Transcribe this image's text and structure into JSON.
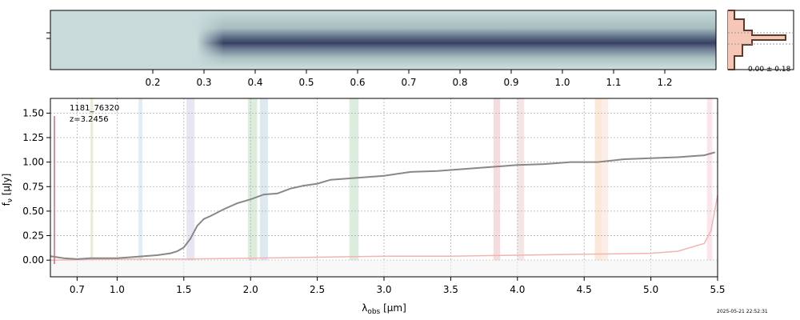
{
  "chart_data": [
    {
      "type": "heatmap",
      "description_label": "2D spectrum",
      "xaxis_ticks": [
        "0.2",
        "0.3",
        "0.4",
        "0.5",
        "0.6",
        "0.7",
        "0.8",
        "0.9",
        "1.0",
        "1.1",
        "1.2"
      ],
      "xaxis_tick_values": [
        0.2,
        0.3,
        0.4,
        0.5,
        0.6,
        0.7,
        0.8,
        0.9,
        1.0,
        1.1,
        1.2
      ],
      "xlim": [
        0.0,
        1.3
      ],
      "colormap": [
        "#c7d9d9",
        "#9fb5b8",
        "#5c6c86",
        "#3a4163"
      ]
    },
    {
      "type": "area",
      "description_label": "Spatial profile",
      "annotation": "0.00 ± 0.18",
      "fill_color": "#f6c7b7",
      "line_color": "#5b3a2e"
    },
    {
      "type": "line",
      "ylabel": "f_ν [μJy]",
      "xlabel": "λ_obs [μm]",
      "annotations": [
        "1181_76320",
        "z=3.2456"
      ],
      "xlim": [
        0.5,
        5.5
      ],
      "ylim": [
        -0.17,
        1.65
      ],
      "xticks": [
        "0.7",
        "1.0",
        "1.5",
        "2.0",
        "2.5",
        "3.0",
        "3.5",
        "4.0",
        "4.5",
        "5.0",
        "5.5"
      ],
      "xtick_values": [
        0.7,
        1.0,
        1.5,
        2.0,
        2.5,
        3.0,
        3.5,
        4.0,
        4.5,
        5.0,
        5.5
      ],
      "yticks": [
        "0.00",
        "0.25",
        "0.50",
        "0.75",
        "1.00",
        "1.25",
        "1.50"
      ],
      "ytick_values": [
        0,
        0.25,
        0.5,
        0.75,
        1.0,
        1.25,
        1.5
      ],
      "grid": true,
      "series": [
        {
          "role": "flux",
          "color": "#888888",
          "x": [
            0.5,
            0.6,
            0.7,
            0.8,
            0.9,
            1.0,
            1.1,
            1.2,
            1.3,
            1.4,
            1.45,
            1.5,
            1.55,
            1.6,
            1.65,
            1.7,
            1.8,
            1.9,
            2.0,
            2.1,
            2.2,
            2.3,
            2.4,
            2.5,
            2.6,
            2.8,
            3.0,
            3.2,
            3.4,
            3.6,
            3.8,
            4.0,
            4.2,
            4.4,
            4.6,
            4.8,
            5.0,
            5.2,
            5.4,
            5.48
          ],
          "y": [
            0.04,
            0.02,
            0.01,
            0.02,
            0.02,
            0.02,
            0.03,
            0.04,
            0.05,
            0.07,
            0.09,
            0.13,
            0.22,
            0.35,
            0.42,
            0.45,
            0.52,
            0.58,
            0.62,
            0.67,
            0.68,
            0.73,
            0.76,
            0.78,
            0.82,
            0.84,
            0.86,
            0.9,
            0.91,
            0.93,
            0.95,
            0.97,
            0.98,
            1.0,
            1.0,
            1.03,
            1.04,
            1.05,
            1.07,
            1.1
          ]
        },
        {
          "role": "error",
          "color": "#f3b3b3",
          "x": [
            0.5,
            1.0,
            1.5,
            2.0,
            2.5,
            3.0,
            3.5,
            4.0,
            4.5,
            5.0,
            5.2,
            5.4,
            5.45,
            5.5
          ],
          "y": [
            0.0,
            0.01,
            0.01,
            0.02,
            0.03,
            0.04,
            0.04,
            0.05,
            0.06,
            0.07,
            0.09,
            0.17,
            0.3,
            0.66
          ]
        }
      ],
      "shaded_bands": [
        {
          "x0": 0.8,
          "x1": 0.82,
          "color": "#e9e6c4"
        },
        {
          "x0": 1.16,
          "x1": 1.19,
          "color": "#d9e7f5"
        },
        {
          "x0": 1.52,
          "x1": 1.58,
          "color": "#e3dff0"
        },
        {
          "x0": 1.98,
          "x1": 2.05,
          "color": "#d4e9d4"
        },
        {
          "x0": 2.07,
          "x1": 2.13,
          "color": "#d3e3ee"
        },
        {
          "x0": 2.74,
          "x1": 2.81,
          "color": "#d4e9d4"
        },
        {
          "x0": 3.82,
          "x1": 3.87,
          "color": "#f3d4d4"
        },
        {
          "x0": 4.0,
          "x1": 4.05,
          "color": "#f3dede"
        },
        {
          "x0": 4.58,
          "x1": 4.63,
          "color": "#fbe2cf"
        },
        {
          "x0": 4.63,
          "x1": 4.68,
          "color": "#fbe8e4"
        },
        {
          "x0": 5.42,
          "x1": 5.46,
          "color": "#fbdfe9"
        }
      ]
    }
  ],
  "timestamp": "2025-05-21 22:52:31"
}
